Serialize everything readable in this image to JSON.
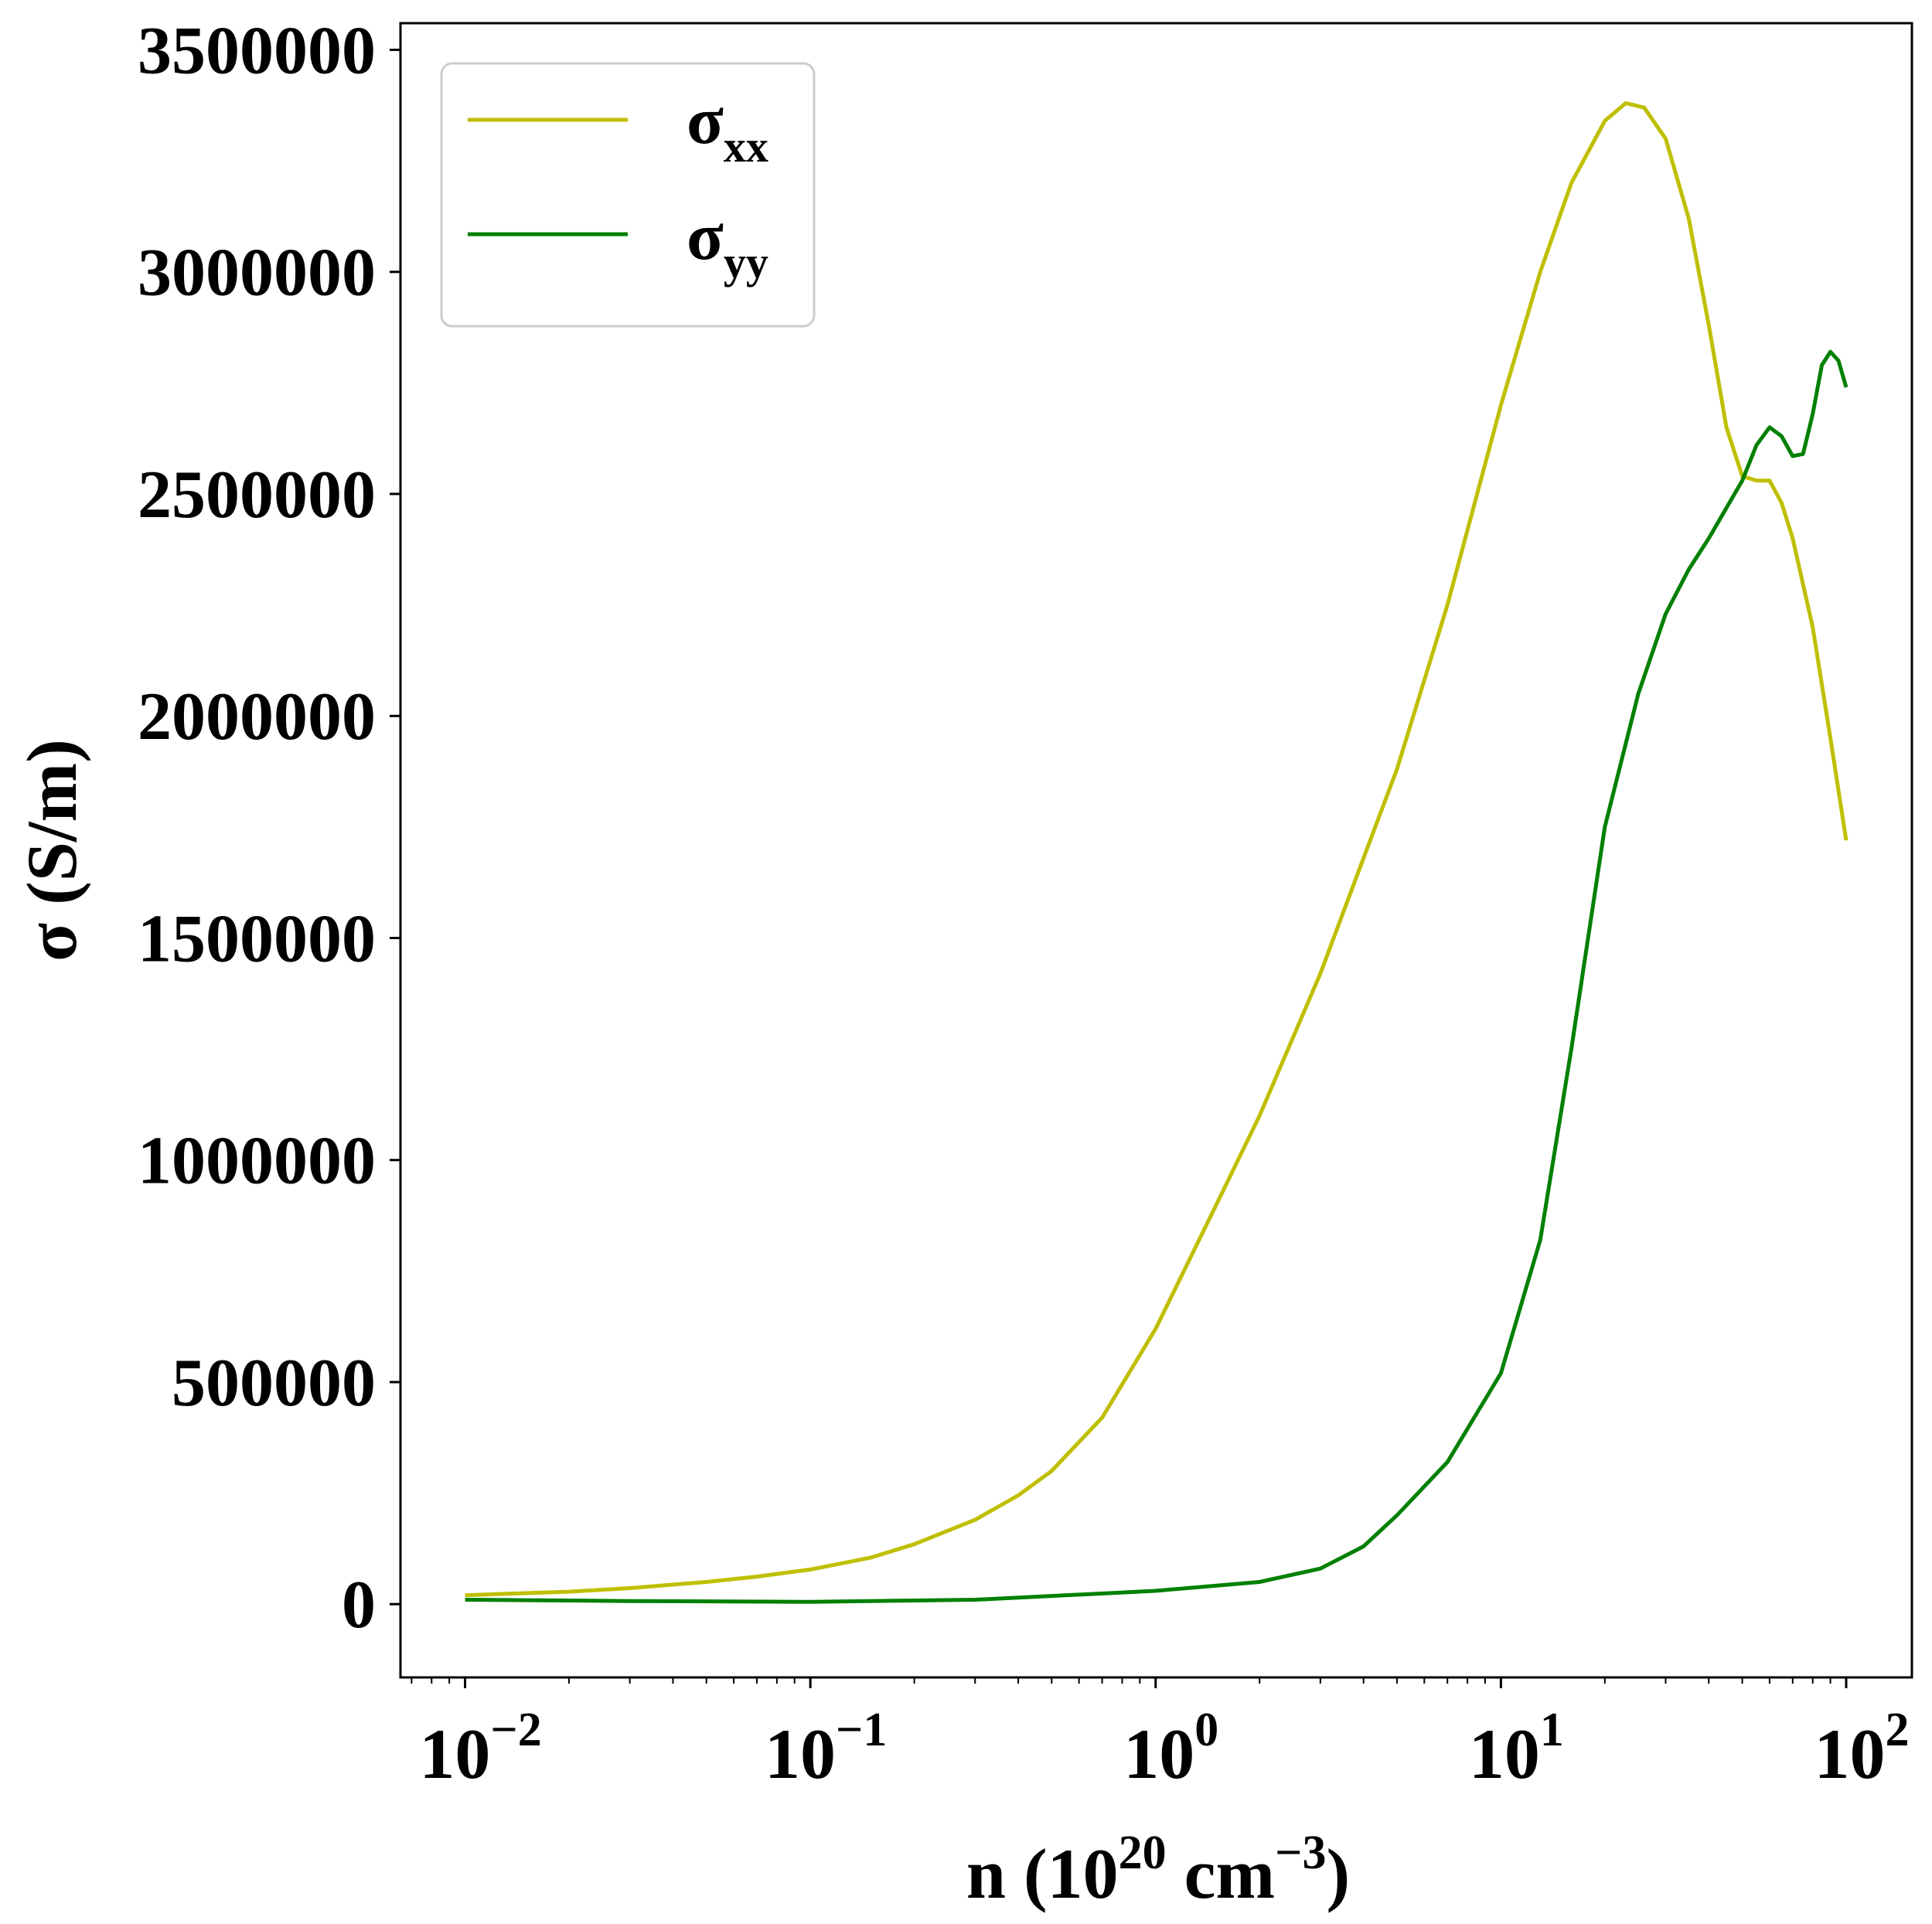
{
  "chart_data": {
    "type": "line",
    "title": "",
    "xlabel": "n (10^20 cm^-3)",
    "xlabel_parts": {
      "main": "n (10",
      "exp1": "20",
      "mid": " cm",
      "exp2": "−3",
      "end": ")"
    },
    "ylabel": "σ (S/m)",
    "xscale": "log",
    "xlim": [
      0.0065,
      155
    ],
    "ylim": [
      -165000,
      3560000
    ],
    "grid": false,
    "legend_position": "top-left",
    "x_ticks": [
      {
        "value": 0.01,
        "base": "10",
        "exp": "−2"
      },
      {
        "value": 0.1,
        "base": "10",
        "exp": "−1"
      },
      {
        "value": 1,
        "base": "10",
        "exp": "0"
      },
      {
        "value": 10,
        "base": "10",
        "exp": "1"
      },
      {
        "value": 100,
        "base": "10",
        "exp": "2"
      }
    ],
    "y_ticks": [
      {
        "value": 0,
        "label": "0"
      },
      {
        "value": 500000,
        "label": "500000"
      },
      {
        "value": 1000000,
        "label": "1000000"
      },
      {
        "value": 1500000,
        "label": "1500000"
      },
      {
        "value": 2000000,
        "label": "2000000"
      },
      {
        "value": 2500000,
        "label": "2500000"
      },
      {
        "value": 3000000,
        "label": "3000000"
      },
      {
        "value": 3500000,
        "label": "3500000"
      }
    ],
    "series": [
      {
        "name": "σxx",
        "name_main": "σ",
        "name_sub": "xx",
        "color": "#bfbf00",
        "points": [
          [
            0.01,
            20000
          ],
          [
            0.02,
            28000
          ],
          [
            0.03,
            36000
          ],
          [
            0.05,
            50000
          ],
          [
            0.07,
            62000
          ],
          [
            0.1,
            78000
          ],
          [
            0.15,
            105000
          ],
          [
            0.2,
            135000
          ],
          [
            0.3,
            190000
          ],
          [
            0.4,
            245000
          ],
          [
            0.5,
            300000
          ],
          [
            0.7,
            420000
          ],
          [
            1.0,
            620000
          ],
          [
            1.5,
            900000
          ],
          [
            2.0,
            1100000
          ],
          [
            3.0,
            1420000
          ],
          [
            4.0,
            1680000
          ],
          [
            5.0,
            1880000
          ],
          [
            7.0,
            2250000
          ],
          [
            10.0,
            2700000
          ],
          [
            13.0,
            3000000
          ],
          [
            16.0,
            3200000
          ],
          [
            20.0,
            3340000
          ],
          [
            23.0,
            3380000
          ],
          [
            26.0,
            3370000
          ],
          [
            30.0,
            3300000
          ],
          [
            35.0,
            3120000
          ],
          [
            40.0,
            2880000
          ],
          [
            45.0,
            2650000
          ],
          [
            50.0,
            2540000
          ],
          [
            55.0,
            2530000
          ],
          [
            60.0,
            2530000
          ],
          [
            65.0,
            2480000
          ],
          [
            70.0,
            2400000
          ],
          [
            80.0,
            2200000
          ],
          [
            90.0,
            1950000
          ],
          [
            100.0,
            1720000
          ]
        ]
      },
      {
        "name": "σyy",
        "name_main": "σ",
        "name_sub": "yy",
        "color": "#008000",
        "points": [
          [
            0.01,
            10000
          ],
          [
            0.03,
            7000
          ],
          [
            0.1,
            5000
          ],
          [
            0.3,
            10000
          ],
          [
            1.0,
            30000
          ],
          [
            2.0,
            50000
          ],
          [
            3.0,
            80000
          ],
          [
            4.0,
            130000
          ],
          [
            5.0,
            200000
          ],
          [
            7.0,
            320000
          ],
          [
            10.0,
            520000
          ],
          [
            13.0,
            820000
          ],
          [
            16.0,
            1250000
          ],
          [
            20.0,
            1750000
          ],
          [
            25.0,
            2050000
          ],
          [
            30.0,
            2230000
          ],
          [
            35.0,
            2330000
          ],
          [
            40.0,
            2400000
          ],
          [
            50.0,
            2530000
          ],
          [
            55.0,
            2610000
          ],
          [
            60.0,
            2650000
          ],
          [
            65.0,
            2630000
          ],
          [
            70.0,
            2585000
          ],
          [
            75.0,
            2590000
          ],
          [
            80.0,
            2680000
          ],
          [
            85.0,
            2790000
          ],
          [
            90.0,
            2820000
          ],
          [
            95.0,
            2800000
          ],
          [
            100.0,
            2740000
          ]
        ]
      }
    ]
  }
}
